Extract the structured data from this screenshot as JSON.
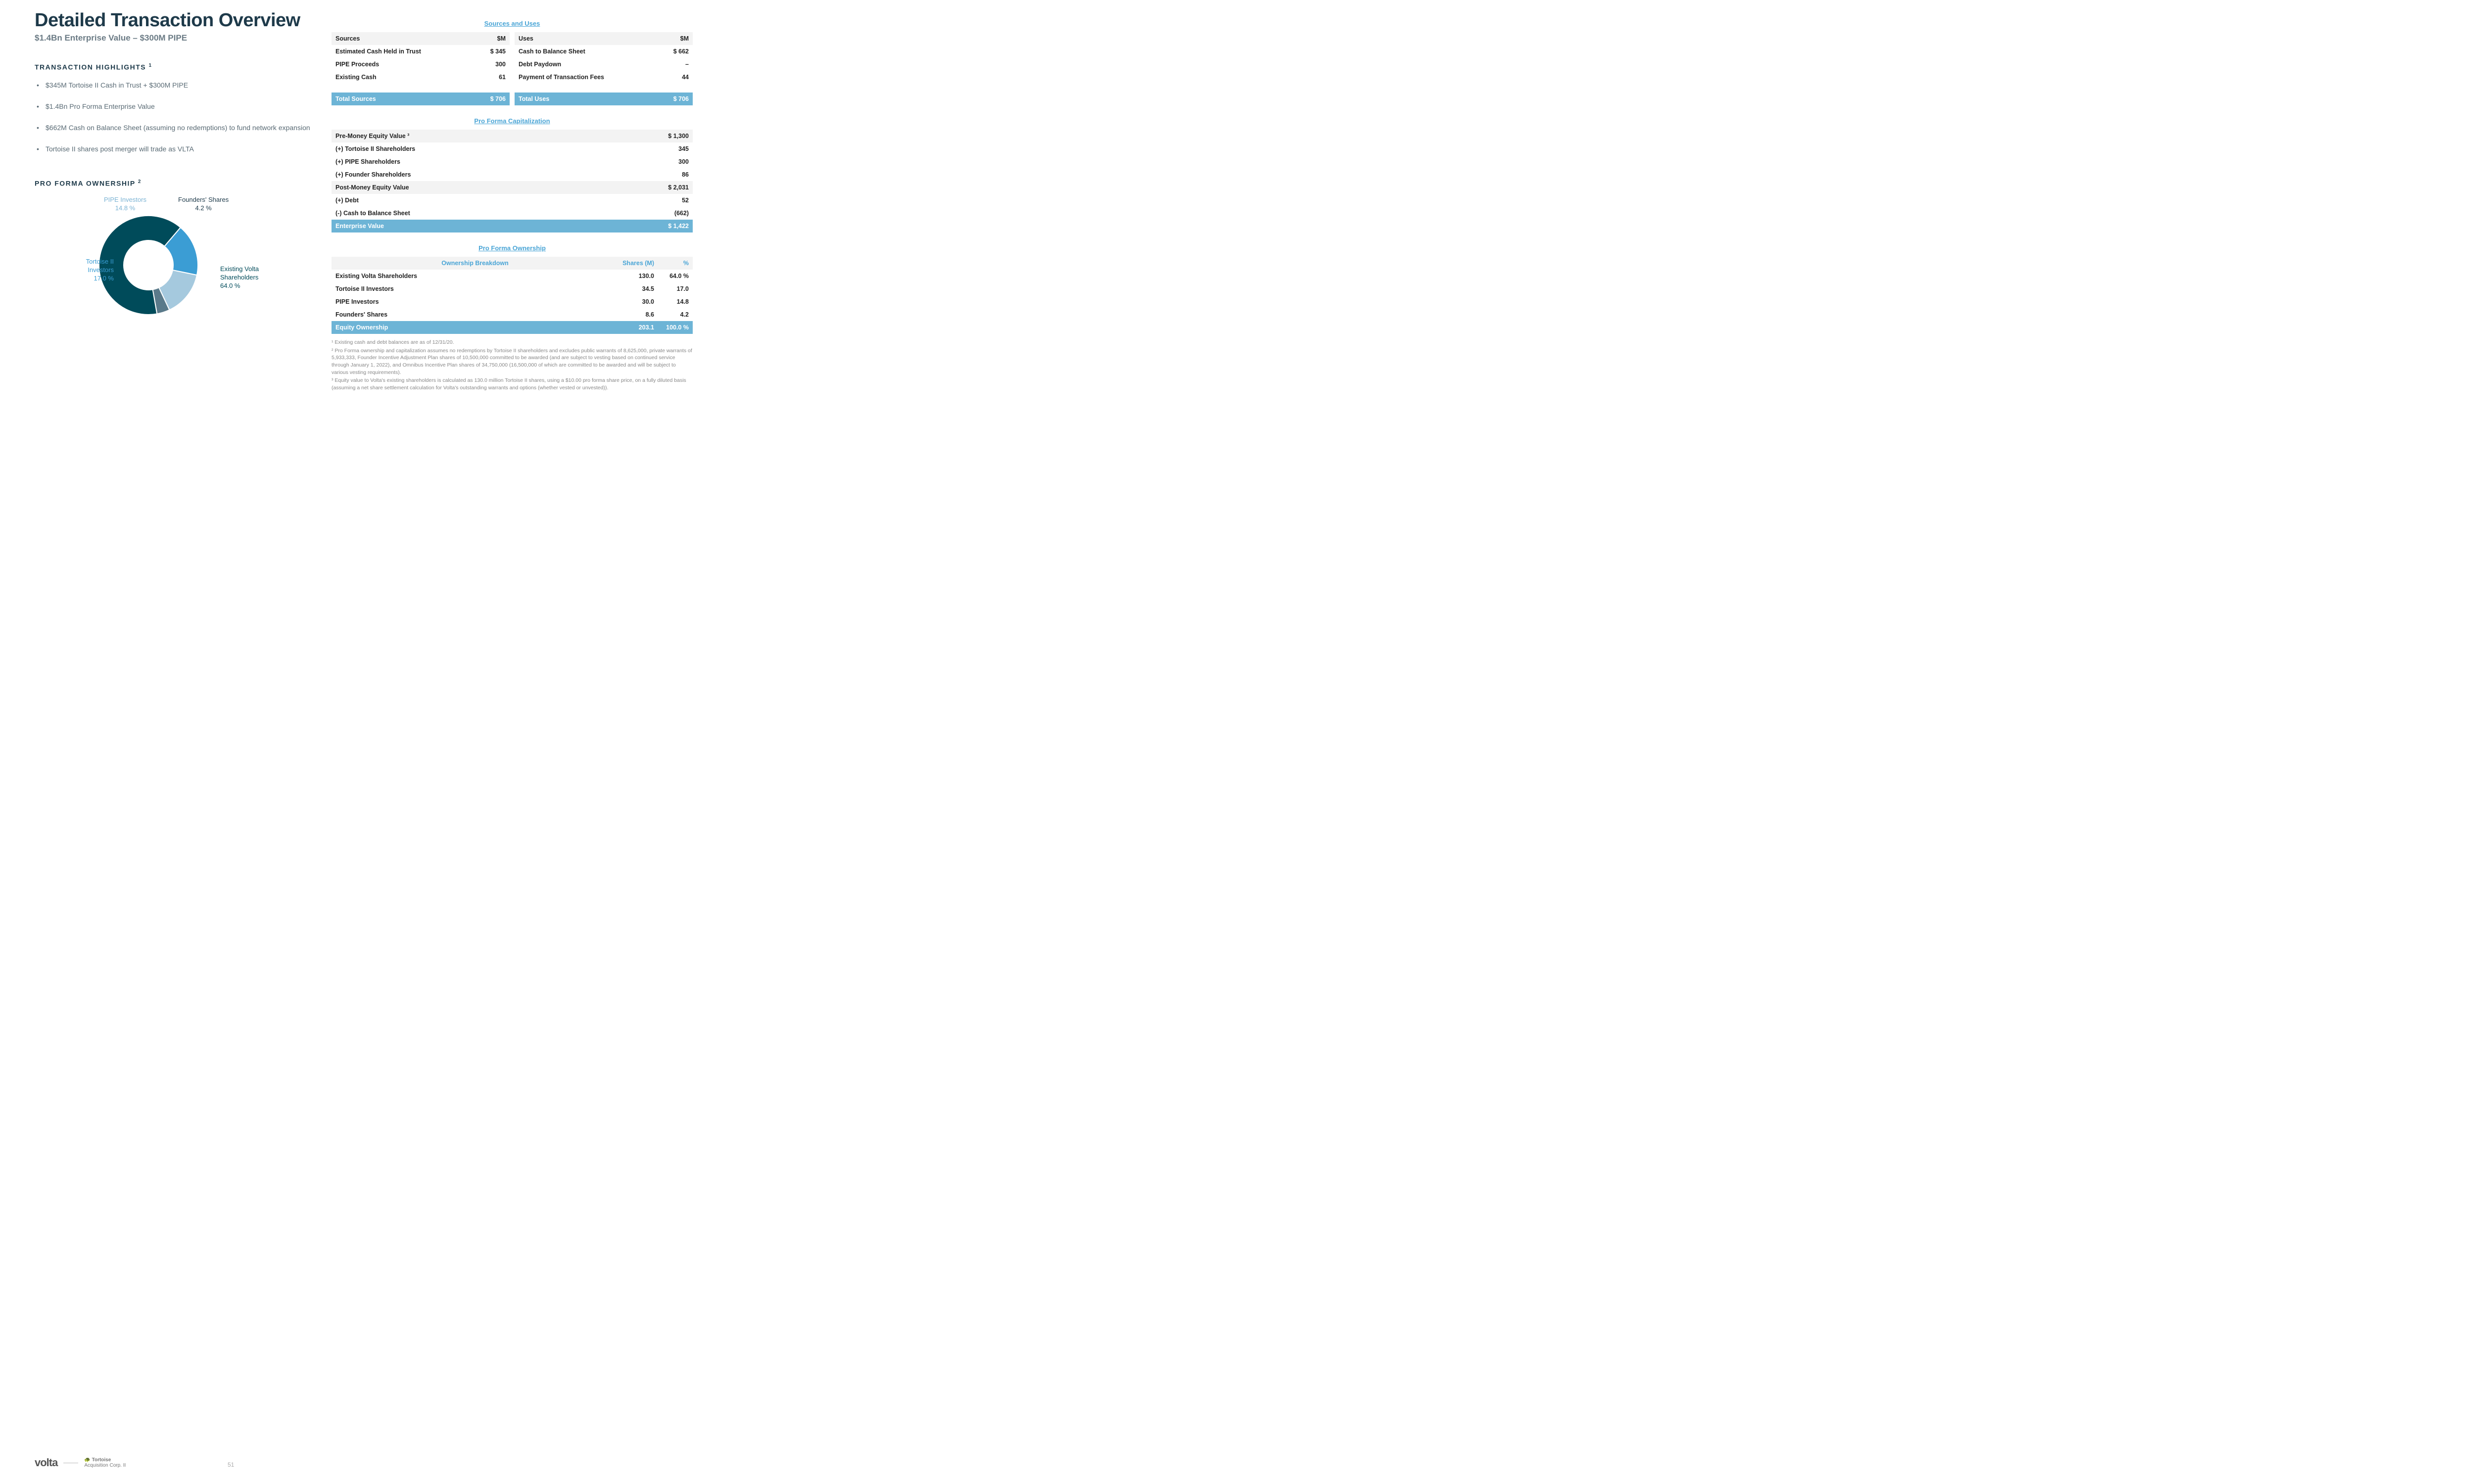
{
  "title": "Detailed Transaction Overview",
  "subtitle": "$1.4Bn Enterprise Value – $300M PIPE",
  "highlights_heading": "TRANSACTION HIGHLIGHTS",
  "highlights_sup": "1",
  "bullets": [
    "$345M Tortoise II Cash in Trust + $300M PIPE",
    "$1.4Bn Pro Forma Enterprise Value",
    "$662M Cash on Balance Sheet (assuming no redemptions) to fund network expansion",
    "Tortoise II shares post merger will trade as VLTA"
  ],
  "ownership_heading": "PRO FORMA OWNERSHIP",
  "ownership_sup": "2",
  "donut": {
    "type": "pie",
    "inner_radius": 50,
    "outer_radius": 100,
    "background_color": "#ffffff",
    "slices": [
      {
        "label": "Existing Volta Shareholders",
        "pct": 64.0,
        "color": "#004b5a"
      },
      {
        "label": "Tortoise II Investors",
        "pct": 17.0,
        "color": "#3b9dd4"
      },
      {
        "label": "PIPE Investors",
        "pct": 14.8,
        "color": "#a5c9de"
      },
      {
        "label": "Founders' Shares",
        "pct": 4.2,
        "color": "#5a7a8a"
      }
    ],
    "labels": {
      "pipe": {
        "name": "PIPE Investors",
        "pct": "14.8 %"
      },
      "founder": {
        "name": "Founders' Shares",
        "pct": "4.2 %"
      },
      "tortoise": {
        "name": "Tortoise II Investors",
        "pct": "17.0 %"
      },
      "existing": {
        "name": "Existing Volta Shareholders",
        "pct": "64.0 %"
      }
    }
  },
  "logos": {
    "volta": "volta",
    "tortoise_top": "🐢 Tortoise",
    "tortoise_bottom": "Acquisition Corp. II"
  },
  "page_number": "51",
  "sources_uses_heading": "Sources and Uses",
  "sources": {
    "hdr_label": "Sources",
    "hdr_unit": "$M",
    "rows": [
      {
        "label": "Estimated Cash Held in Trust",
        "val": "$ 345"
      },
      {
        "label": "PIPE Proceeds",
        "val": "300"
      },
      {
        "label": "Existing Cash",
        "val": "61"
      }
    ],
    "total_label": "Total Sources",
    "total_val": "$ 706"
  },
  "uses": {
    "hdr_label": "Uses",
    "hdr_unit": "$M",
    "rows": [
      {
        "label": "Cash to Balance Sheet",
        "val": "$ 662"
      },
      {
        "label": "Debt Paydown",
        "val": "–"
      },
      {
        "label": "Payment of Transaction Fees",
        "val": "44"
      }
    ],
    "total_label": "Total Uses",
    "total_val": "$ 706"
  },
  "cap_heading": "Pro Forma Capitalization",
  "cap_rows": [
    {
      "label": "Pre-Money Equity Value ³",
      "val": "$ 1,300",
      "shade": true
    },
    {
      "label": "(+) Tortoise II Shareholders",
      "val": "345",
      "shade": false
    },
    {
      "label": "(+) PIPE Shareholders",
      "val": "300",
      "shade": false
    },
    {
      "label": "(+) Founder Shareholders",
      "val": "86",
      "shade": false
    },
    {
      "label": "Post-Money Equity Value",
      "val": "$ 2,031",
      "shade": true
    },
    {
      "label": "(+) Debt",
      "val": "52",
      "shade": false
    },
    {
      "label": "(-) Cash to Balance Sheet",
      "val": "(662)",
      "shade": false
    }
  ],
  "cap_total": {
    "label": "Enterprise Value",
    "val": "$ 1,422"
  },
  "own_heading": "Pro Forma Ownership",
  "own_hdr": {
    "c1": "Ownership Breakdown",
    "c2": "Shares (M)",
    "c3": "%"
  },
  "own_rows": [
    {
      "c1": "Existing Volta Shareholders",
      "c2": "130.0",
      "c3": "64.0 %"
    },
    {
      "c1": "Tortoise II Investors",
      "c2": "34.5",
      "c3": "17.0"
    },
    {
      "c1": "PIPE Investors",
      "c2": "30.0",
      "c3": "14.8"
    },
    {
      "c1": "Founders' Shares",
      "c2": "8.6",
      "c3": "4.2"
    }
  ],
  "own_total": {
    "c1": "Equity Ownership",
    "c2": "203.1",
    "c3": "100.0 %"
  },
  "footnotes": [
    "¹ Existing cash and debt balances are as of 12/31/20.",
    "² Pro Forma ownership and capitalization assumes no redemptions by Tortoise II shareholders and excludes public warrants of 8,625,000, private warrants of 5,933,333, Founder Incentive Adjustment Plan shares of 10,500,000 committed to be awarded (and are subject to vesting based on continued service through January 1, 2022), and Omnibus Incentive Plan shares of 34,750,000 (16,500,000 of which are committed to be awarded and will be subject to various vesting requirements).",
    "³ Equity value to Volta's existing shareholders is calculated as 130.0 million Tortoise II shares, using a $10.00 pro forma share price, on a fully diluted basis (assuming a net share settlement calculation for Volta's outstanding warrants and options (whether vested or unvested))."
  ],
  "colors": {
    "accent": "#6db4d6",
    "link": "#4aa5d6",
    "heading": "#1e3a4a",
    "muted": "#888888",
    "row_shade": "#f3f3f3"
  }
}
